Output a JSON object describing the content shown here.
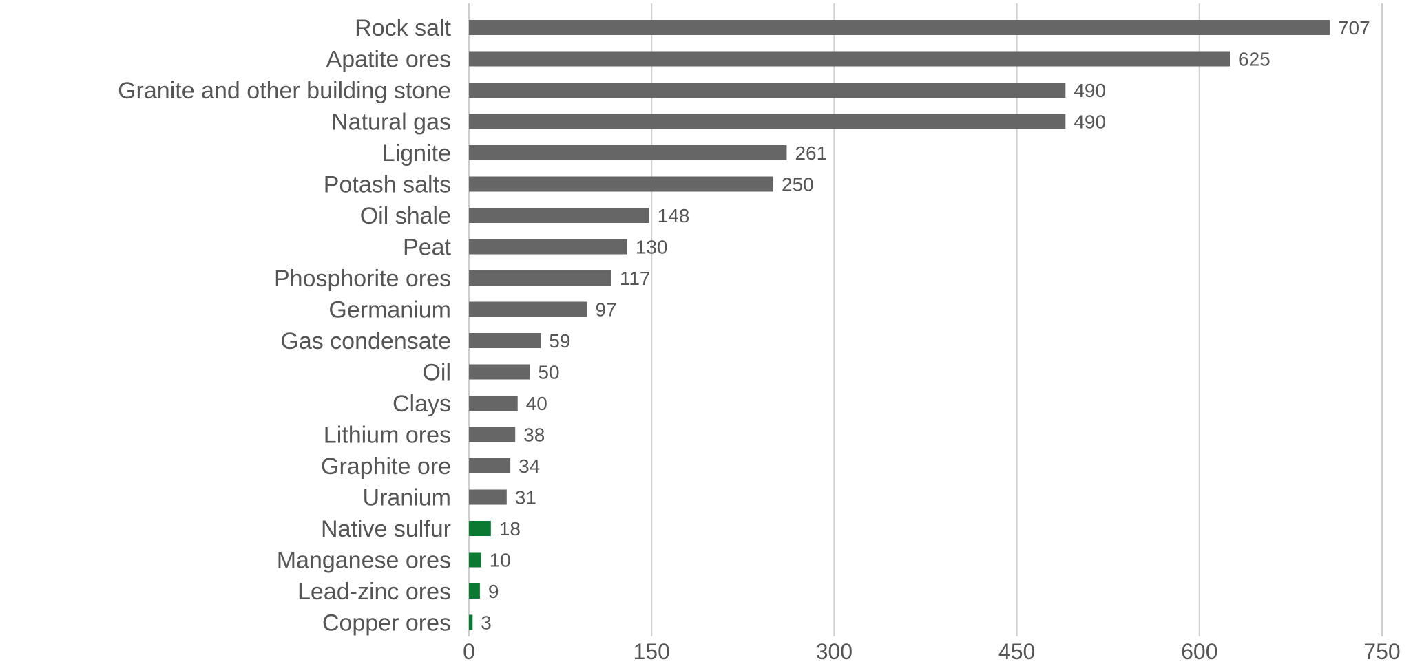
{
  "chart_data": {
    "type": "bar",
    "orientation": "horizontal",
    "categories": [
      "Rock salt",
      "Apatite ores",
      "Granite and other building stone",
      "Natural gas",
      "Lignite",
      "Potash salts",
      "Oil shale",
      "Peat",
      "Phosphorite ores",
      "Germanium",
      "Gas condensate",
      "Oil",
      "Clays",
      "Lithium ores",
      "Graphite ore",
      "Uranium",
      "Native sulfur",
      "Manganese ores",
      "Lead-zinc ores",
      "Copper ores"
    ],
    "values": [
      707,
      625,
      490,
      490,
      261,
      250,
      148,
      130,
      117,
      97,
      59,
      50,
      40,
      38,
      34,
      31,
      18,
      10,
      9,
      3
    ],
    "bar_colors": [
      "#666666",
      "#666666",
      "#666666",
      "#666666",
      "#666666",
      "#666666",
      "#666666",
      "#666666",
      "#666666",
      "#666666",
      "#666666",
      "#666666",
      "#666666",
      "#666666",
      "#666666",
      "#666666",
      "#0a7a32",
      "#0a7a32",
      "#0a7a32",
      "#0a7a32"
    ],
    "xlim": [
      0,
      750
    ],
    "xticks": [
      "0",
      "150",
      "300",
      "450",
      "600",
      "750"
    ],
    "grid": "vertical",
    "title": "",
    "xlabel": "",
    "ylabel": ""
  }
}
